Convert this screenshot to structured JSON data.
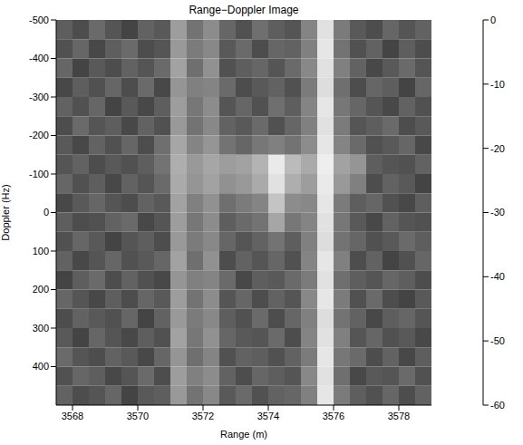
{
  "chart_data": {
    "type": "heatmap",
    "title": "Range−Doppler Image",
    "x_label": "Range (m)",
    "y_label": "Doppler (Hz)",
    "x": [
      3567.75,
      3568.25,
      3568.75,
      3569.25,
      3569.75,
      3570.25,
      3570.75,
      3571.25,
      3571.75,
      3572.25,
      3572.75,
      3573.25,
      3573.75,
      3574.25,
      3574.75,
      3575.25,
      3575.75,
      3576.25,
      3576.75,
      3577.25,
      3577.75,
      3578.25,
      3578.75
    ],
    "y": [
      -475,
      -425,
      -375,
      -325,
      -275,
      -225,
      -175,
      -125,
      -75,
      -25,
      25,
      75,
      125,
      175,
      225,
      275,
      325,
      375,
      425,
      475
    ],
    "cells": [
      [
        -38,
        -42,
        -35,
        -40,
        -44,
        -37,
        -39,
        -23,
        -33,
        -27,
        -36,
        -41,
        -34,
        -38,
        -40,
        -29,
        -7,
        -31,
        -39,
        -42,
        -36,
        -40,
        -37
      ],
      [
        -41,
        -36,
        -43,
        -38,
        -35,
        -42,
        -40,
        -24,
        -31,
        -28,
        -39,
        -35,
        -42,
        -36,
        -37,
        -30,
        -6,
        -33,
        -41,
        -37,
        -44,
        -38,
        -42
      ],
      [
        -36,
        -44,
        -39,
        -42,
        -37,
        -40,
        -35,
        -22,
        -34,
        -26,
        -41,
        -38,
        -36,
        -40,
        -35,
        -28,
        -7,
        -30,
        -37,
        -43,
        -39,
        -35,
        -40
      ],
      [
        -43,
        -38,
        -41,
        -36,
        -42,
        -35,
        -43,
        -25,
        -30,
        -29,
        -35,
        -42,
        -39,
        -37,
        -41,
        -31,
        -8,
        -34,
        -42,
        -36,
        -38,
        -44,
        -36
      ],
      [
        -37,
        -41,
        -36,
        -44,
        -39,
        -43,
        -38,
        -23,
        -32,
        -27,
        -40,
        -36,
        -41,
        -34,
        -38,
        -29,
        -6,
        -32,
        -36,
        -40,
        -43,
        -37,
        -41
      ],
      [
        -42,
        -35,
        -40,
        -38,
        -43,
        -37,
        -41,
        -24,
        -33,
        -28,
        -37,
        -39,
        -35,
        -41,
        -36,
        -30,
        -7,
        -31,
        -40,
        -38,
        -35,
        -42,
        -39
      ],
      [
        -39,
        -43,
        -37,
        -41,
        -36,
        -42,
        -34,
        -21,
        -29,
        -25,
        -33,
        -36,
        -32,
        -30,
        -33,
        -27,
        -6,
        -29,
        -35,
        -41,
        -39,
        -36,
        -43
      ],
      [
        -40,
        -37,
        -42,
        -39,
        -41,
        -38,
        -33,
        -19,
        -24,
        -21,
        -23,
        -22,
        -18,
        -5,
        -16,
        -20,
        -4,
        -22,
        -25,
        -38,
        -40,
        -41,
        -37
      ],
      [
        -36,
        -41,
        -38,
        -43,
        -37,
        -40,
        -35,
        -20,
        -25,
        -22,
        -26,
        -24,
        -20,
        -7,
        -19,
        -23,
        -5,
        -24,
        -30,
        -42,
        -37,
        -39,
        -44
      ],
      [
        -43,
        -39,
        -36,
        -40,
        -42,
        -37,
        -39,
        -22,
        -30,
        -26,
        -34,
        -31,
        -29,
        -14,
        -27,
        -28,
        -6,
        -31,
        -38,
        -36,
        -41,
        -43,
        -38
      ],
      [
        -38,
        -42,
        -41,
        -37,
        -35,
        -43,
        -40,
        -23,
        -32,
        -27,
        -38,
        -35,
        -33,
        -21,
        -32,
        -29,
        -7,
        -32,
        -39,
        -43,
        -37,
        -40,
        -41
      ],
      [
        -41,
        -36,
        -39,
        -44,
        -40,
        -38,
        -42,
        -24,
        -31,
        -28,
        -36,
        -40,
        -37,
        -33,
        -38,
        -30,
        -8,
        -33,
        -36,
        -41,
        -39,
        -35,
        -38
      ],
      [
        -37,
        -43,
        -40,
        -36,
        -41,
        -39,
        -36,
        -22,
        -34,
        -26,
        -42,
        -37,
        -40,
        -36,
        -41,
        -29,
        -6,
        -30,
        -42,
        -37,
        -44,
        -41,
        -36
      ],
      [
        -44,
        -38,
        -35,
        -42,
        -37,
        -41,
        -43,
        -25,
        -30,
        -29,
        -35,
        -43,
        -38,
        -39,
        -35,
        -31,
        -7,
        -34,
        -38,
        -40,
        -36,
        -38,
        -42
      ],
      [
        -36,
        -40,
        -43,
        -38,
        -42,
        -36,
        -39,
        -23,
        -33,
        -27,
        -40,
        -36,
        -42,
        -37,
        -40,
        -28,
        -6,
        -31,
        -41,
        -35,
        -42,
        -44,
        -39
      ],
      [
        -42,
        -37,
        -39,
        -41,
        -36,
        -44,
        -37,
        -24,
        -31,
        -28,
        -38,
        -41,
        -35,
        -42,
        -36,
        -30,
        -8,
        -33,
        -37,
        -43,
        -38,
        -36,
        -40
      ],
      [
        -39,
        -44,
        -36,
        -40,
        -43,
        -38,
        -41,
        -22,
        -32,
        -26,
        -36,
        -39,
        -40,
        -35,
        -42,
        -29,
        -7,
        -30,
        -40,
        -36,
        -41,
        -39,
        -43
      ],
      [
        -35,
        -40,
        -42,
        -37,
        -39,
        -43,
        -36,
        -25,
        -34,
        -29,
        -41,
        -37,
        -38,
        -41,
        -37,
        -31,
        -6,
        -32,
        -35,
        -42,
        -37,
        -43,
        -38
      ],
      [
        -41,
        -36,
        -38,
        -43,
        -40,
        -35,
        -42,
        -23,
        -30,
        -27,
        -37,
        -42,
        -36,
        -38,
        -40,
        -28,
        -7,
        -34,
        -43,
        -39,
        -40,
        -35,
        -41
      ],
      [
        -37,
        -42,
        -40,
        -36,
        -44,
        -39,
        -38,
        -24,
        -33,
        -28,
        -39,
        -35,
        -41,
        -37,
        -36,
        -30,
        -6,
        -31,
        -38,
        -41,
        -36,
        -42,
        -37
      ]
    ],
    "xlim": [
      3567.5,
      3579
    ],
    "ylim": [
      -500,
      500
    ],
    "xticks": [
      3568,
      3570,
      3572,
      3574,
      3576,
      3578
    ],
    "yticks": [
      -500,
      -400,
      -300,
      -200,
      -100,
      0,
      100,
      200,
      300,
      400
    ],
    "colorbar": {
      "range": [
        -60,
        0
      ],
      "ticks": [
        0,
        -10,
        -20,
        -30,
        -40,
        -50,
        -60
      ]
    }
  }
}
